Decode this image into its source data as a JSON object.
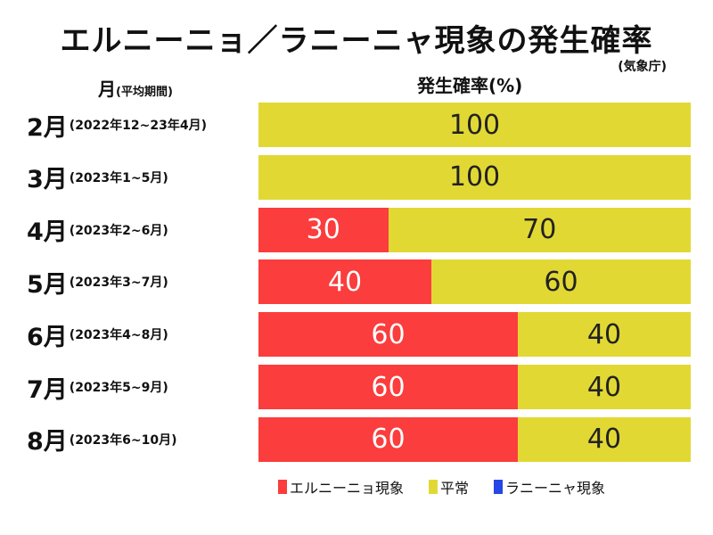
{
  "chart_data": {
    "type": "bar",
    "orientation": "horizontal",
    "stacked": true,
    "title": "エルニーニョ／ラニーニャ現象の発生確率",
    "source": "(気象庁)",
    "ylabel": "月",
    "ylabel_note": "(平均期間)",
    "xlabel": "発生確率(%)",
    "xlim": [
      0,
      100
    ],
    "grid": false,
    "legend_position": "bottom",
    "categories": [
      {
        "month": "2月",
        "period": "(2022年12~23年4月)"
      },
      {
        "month": "3月",
        "period": "(2023年1~5月)"
      },
      {
        "month": "4月",
        "period": "(2023年2~6月)"
      },
      {
        "month": "5月",
        "period": "(2023年3~7月)"
      },
      {
        "month": "6月",
        "period": "(2023年4~8月)"
      },
      {
        "month": "7月",
        "period": "(2023年5~9月)"
      },
      {
        "month": "8月",
        "period": "(2023年6~10月)"
      }
    ],
    "series": [
      {
        "key": "el",
        "name": "エルニーニョ現象",
        "color": "#fb3d3d",
        "text_color": "#ffffff",
        "values": [
          0,
          0,
          30,
          40,
          60,
          60,
          60
        ]
      },
      {
        "key": "normal",
        "name": "平常",
        "color": "#e2d834",
        "text_color": "#222222",
        "values": [
          100,
          100,
          70,
          60,
          40,
          40,
          40
        ]
      },
      {
        "key": "la",
        "name": "ラニーニャ現象",
        "color": "#2447e6",
        "text_color": "#ffffff",
        "values": [
          0,
          0,
          0,
          0,
          0,
          0,
          0
        ]
      }
    ]
  }
}
